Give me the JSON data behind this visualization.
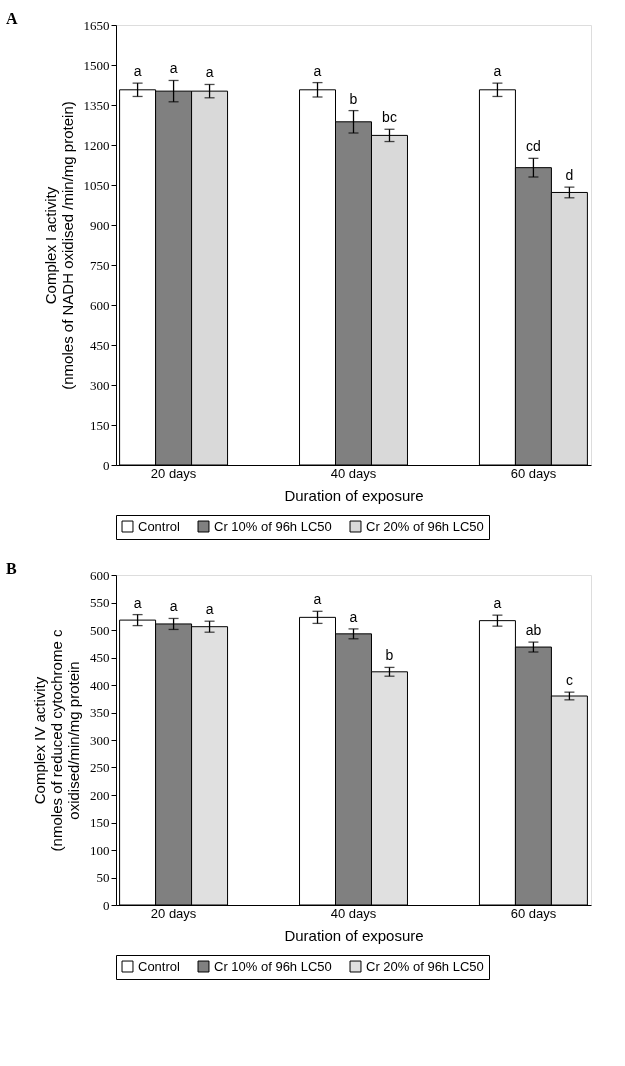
{
  "chart_data": [
    {
      "type": "bar",
      "title": "A",
      "xlabel": "Duration of exposure",
      "ylabel": "Complex I activity\n(nmoles of NADH oxidised /min/mg protein)",
      "categories": [
        "20 days",
        "40 days",
        "60 days"
      ],
      "ylim": [
        0,
        1650
      ],
      "yticks": [
        0,
        150,
        300,
        450,
        600,
        750,
        900,
        1050,
        1200,
        1350,
        1500,
        1650
      ],
      "grid": false,
      "legend": "bottom",
      "series": [
        {
          "name": "Control",
          "color": "#ffffff",
          "values": [
            1407,
            1407,
            1407
          ],
          "errors": [
            25,
            27,
            25
          ],
          "value_labels": [
            "a",
            "a",
            "a"
          ]
        },
        {
          "name": "Cr 10% of 96h LC50",
          "color": "#808080",
          "values": [
            1402,
            1287,
            1115
          ],
          "errors": [
            40,
            42,
            35
          ],
          "value_labels": [
            "a",
            "b",
            "cd"
          ]
        },
        {
          "name": "Cr 20% of 96h LC50",
          "color": "#d9d9d9",
          "values": [
            1402,
            1236,
            1022
          ],
          "errors": [
            25,
            23,
            20
          ],
          "value_labels": [
            "a",
            "bc",
            "d"
          ]
        }
      ]
    },
    {
      "type": "bar",
      "title": "B",
      "xlabel": "Duration of exposure",
      "ylabel": "Complex IV activity\n(nmoles of reduced cytochrome c\noxidised/min/mg protein",
      "categories": [
        "20 days",
        "40 days",
        "60 days"
      ],
      "ylim": [
        0,
        600
      ],
      "yticks": [
        0,
        50,
        100,
        150,
        200,
        250,
        300,
        350,
        400,
        450,
        500,
        550,
        600
      ],
      "grid": false,
      "legend": "bottom",
      "series": [
        {
          "name": "Control",
          "color": "#ffffff",
          "values": [
            518,
            523,
            517
          ],
          "errors": [
            10,
            11,
            10
          ],
          "value_labels": [
            "a",
            "a",
            "a"
          ]
        },
        {
          "name": "Cr 10% of 96h LC50",
          "color": "#808080",
          "values": [
            511,
            493,
            469
          ],
          "errors": [
            10,
            9,
            9
          ],
          "value_labels": [
            "a",
            "a",
            "ab"
          ]
        },
        {
          "name": "Cr 20% of 96h LC50",
          "color": "#e0e0e0",
          "values": [
            506,
            424,
            380
          ],
          "errors": [
            10,
            8,
            7
          ],
          "value_labels": [
            "a",
            "b",
            "c"
          ]
        }
      ]
    }
  ]
}
